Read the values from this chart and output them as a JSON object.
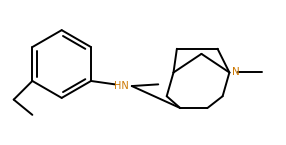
{
  "bg_color": "#ffffff",
  "line_color": "#000000",
  "n_color": "#cc7700",
  "fig_width": 2.86,
  "fig_height": 1.45,
  "dpi": 100,
  "lw": 1.4
}
